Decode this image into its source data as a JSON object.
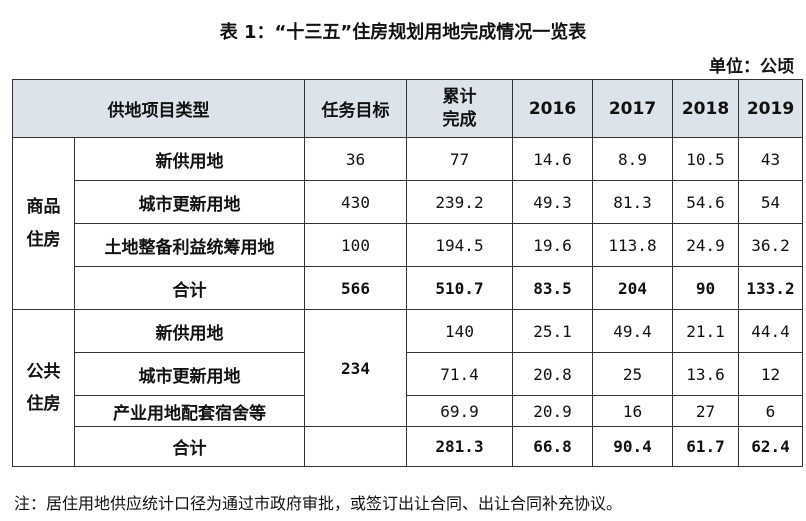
{
  "title": "表 1：“十三五”住房规划用地完成情况一览表",
  "unit": "单位：公顷",
  "headers": {
    "category": "供地项目类型",
    "target": "任务目标",
    "cumulative": "累计\n完成",
    "y2016": "2016",
    "y2017": "2017",
    "y2018": "2018",
    "y2019": "2019"
  },
  "groups": [
    {
      "name": "商品\n住房",
      "rows": [
        {
          "label": "新供用地",
          "target": "36",
          "cumulative": "77",
          "y2016": "14.6",
          "y2017": "8.9",
          "y2018": "10.5",
          "y2019": "43"
        },
        {
          "label": "城市更新用地",
          "target": "430",
          "cumulative": "239.2",
          "y2016": "49.3",
          "y2017": "81.3",
          "y2018": "54.6",
          "y2019": "54"
        },
        {
          "label": "土地整备利益统筹用地",
          "target": "100",
          "cumulative": "194.5",
          "y2016": "19.6",
          "y2017": "113.8",
          "y2018": "24.9",
          "y2019": "36.2"
        },
        {
          "label": "合计",
          "target": "566",
          "cumulative": "510.7",
          "y2016": "83.5",
          "y2017": "204",
          "y2018": "90",
          "y2019": "133.2"
        }
      ]
    },
    {
      "name": "公共\n住房",
      "target": "234",
      "rows": [
        {
          "label": "新供用地",
          "cumulative": "140",
          "y2016": "25.1",
          "y2017": "49.4",
          "y2018": "21.1",
          "y2019": "44.4"
        },
        {
          "label": "城市更新用地",
          "cumulative": "71.4",
          "y2016": "20.8",
          "y2017": "25",
          "y2018": "13.6",
          "y2019": "12"
        },
        {
          "label": "产业用地配套宿舍等",
          "cumulative": "69.9",
          "y2016": "20.9",
          "y2017": "16",
          "y2018": "27",
          "y2019": "6"
        },
        {
          "label": "合计",
          "cumulative": "281.3",
          "y2016": "66.8",
          "y2017": "90.4",
          "y2018": "61.7",
          "y2019": "62.4"
        }
      ]
    }
  ],
  "note": "注：居住用地供应统计口径为通过市政府审批，或签订出让合同、出让合同补充协议。"
}
